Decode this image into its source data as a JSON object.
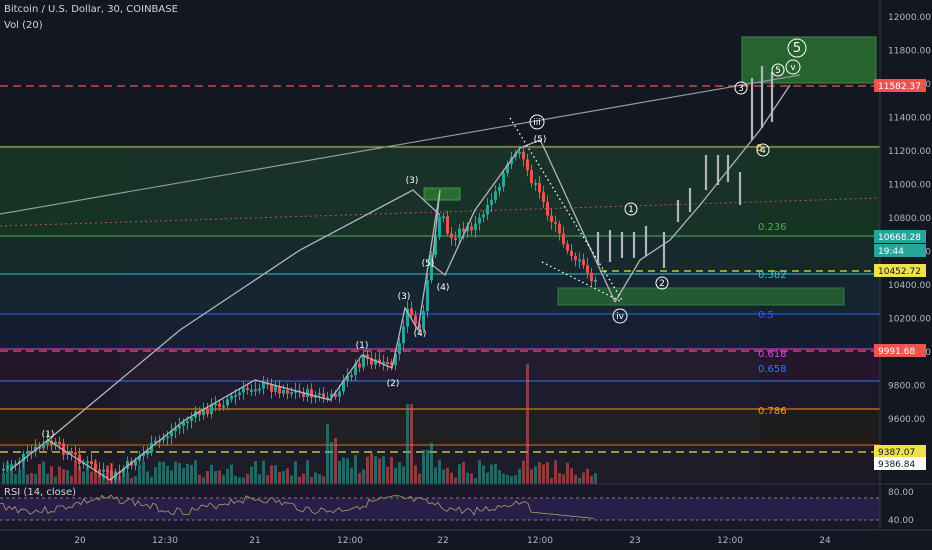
{
  "header": {
    "symbol_line": "Bitcoin / U.S. Dollar, 30, COINBASE",
    "vol_label": "Vol (20)",
    "rsi_label": "RSI (14, close)"
  },
  "colors": {
    "background": "#131722",
    "up": "#26a69a",
    "down": "#ef5350",
    "wave": "#b2b5be",
    "zone": "#1f7a1f"
  },
  "price_axis": {
    "ticks": [
      "12000.00",
      "11800.00",
      "11600.00",
      "11400.00",
      "11200.00",
      "11000.00",
      "10800.00",
      "10600.00",
      "10400.00",
      "10200.00",
      "10000.00",
      "9800.00",
      "9600.00",
      "9400.00"
    ],
    "tags": [
      {
        "text": "11582.37",
        "color": "#ef5350",
        "fg": "#ffffff"
      },
      {
        "text": "10668.28",
        "color": "#26a69a",
        "fg": "#ffffff"
      },
      {
        "text": "19:44",
        "color": "#26a69a",
        "fg": "#ffffff"
      },
      {
        "text": "10452.72",
        "color": "#f0e04a",
        "fg": "#131722"
      },
      {
        "text": "9991.68",
        "color": "#ef5350",
        "fg": "#ffffff"
      },
      {
        "text": "9387.07",
        "color": "#f0e04a",
        "fg": "#131722"
      },
      {
        "text": "9386.84",
        "color": "#ffffff",
        "fg": "#131722"
      }
    ]
  },
  "rsi_axis": {
    "ticks": [
      "80.00",
      "40.00"
    ]
  },
  "time_axis": {
    "ticks": [
      "20",
      "12:30",
      "21",
      "12:00",
      "22",
      "12:00",
      "23",
      "12:00",
      "24"
    ]
  },
  "fib_labels": [
    {
      "text": "0",
      "color": "#f0e04a"
    },
    {
      "text": "0.236",
      "color": "#4caf50"
    },
    {
      "text": "0.382",
      "color": "#26c6da"
    },
    {
      "text": "0.5",
      "color": "#2962ff"
    },
    {
      "text": "0.618",
      "color": "#e040fb"
    },
    {
      "text": "0.658",
      "color": "#2979ff"
    },
    {
      "text": "0.786",
      "color": "#ff9800"
    }
  ],
  "wave_labels": [
    "(1)",
    "(1)",
    "(2)",
    "(3)",
    "(3)",
    "(4)",
    "(4)",
    "(5)",
    "(5)",
    "iii",
    "iv",
    "1",
    "2",
    "3",
    "4",
    "5",
    "v",
    "5"
  ]
}
